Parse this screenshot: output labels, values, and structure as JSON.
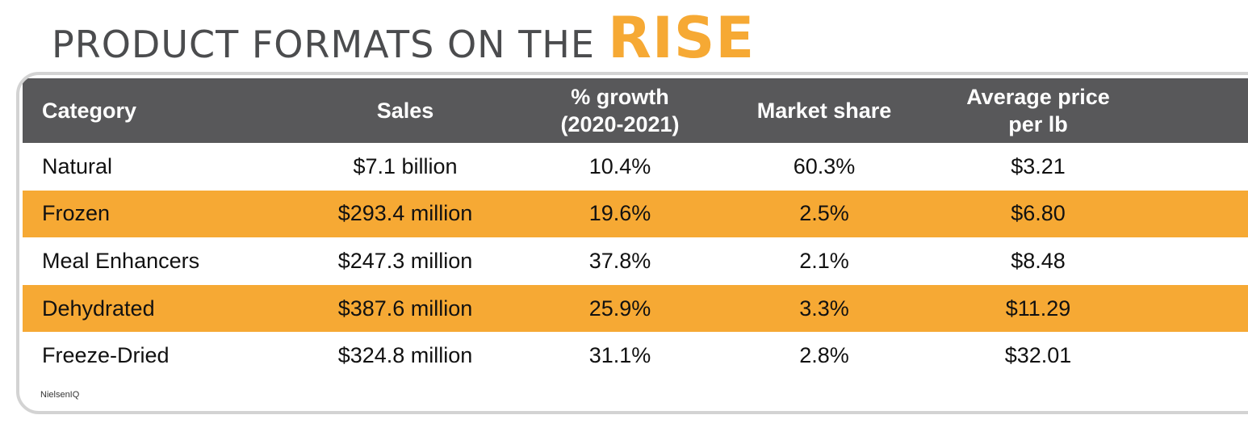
{
  "title": {
    "main": "PRODUCT FORMATS ON THE",
    "accent": "RISE"
  },
  "colors": {
    "accent": "#f6a934",
    "header_bg": "#58585a",
    "title_text": "#4b4c4e"
  },
  "chart_data": {
    "type": "table",
    "title": "PRODUCT FORMATS ON THE RISE",
    "columns": [
      "Category",
      "Sales",
      "% growth (2020-2021)",
      "Market share",
      "Average price per lb"
    ],
    "rows": [
      [
        "Natural",
        "$7.1 billion",
        "10.4%",
        "60.3%",
        "$3.21"
      ],
      [
        "Frozen",
        "$293.4 million",
        "19.6%",
        "2.5%",
        "$6.80"
      ],
      [
        "Meal Enhancers",
        "$247.3 million",
        "37.8%",
        "2.1%",
        "$8.48"
      ],
      [
        "Dehydrated",
        "$387.6 million",
        "25.9%",
        "3.3%",
        "$11.29"
      ],
      [
        "Freeze-Dried",
        "$324.8 million",
        "31.1%",
        "2.8%",
        "$32.01"
      ]
    ],
    "source": "NielsenIQ"
  }
}
